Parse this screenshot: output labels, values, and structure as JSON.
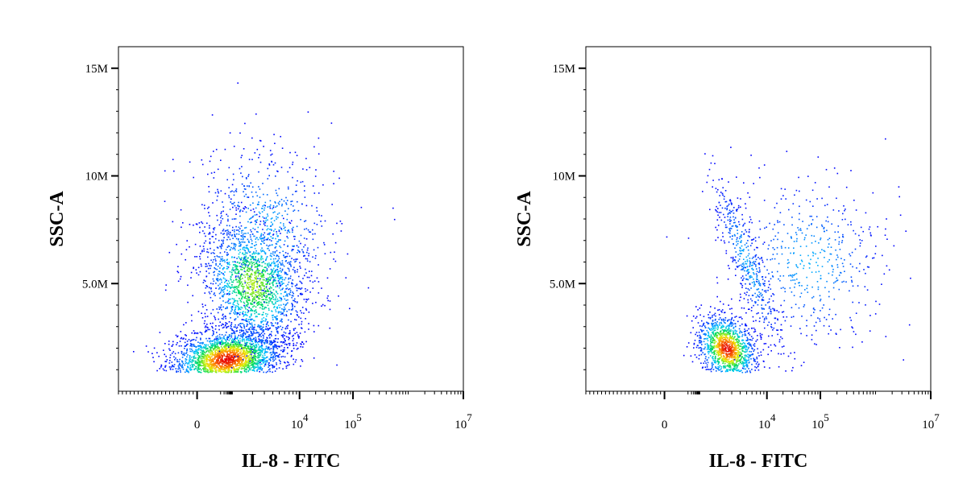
{
  "chart_data": [
    {
      "type": "scatter",
      "subtype": "flow-cytometry density plot",
      "xlabel": "IL-8 - FITC",
      "ylabel": "SSC-A",
      "x_scale": "biexponential",
      "x_ticks": [
        {
          "value": 0,
          "label": "0",
          "sup": ""
        },
        {
          "value": 10000,
          "label": "10",
          "sup": "4"
        },
        {
          "value": 100000,
          "label": "10",
          "sup": "5"
        },
        {
          "value": 10000000,
          "label": "10",
          "sup": "7"
        }
      ],
      "y_ticks": [
        {
          "value": 5000000,
          "label": "5.0M"
        },
        {
          "value": 10000000,
          "label": "10M"
        },
        {
          "value": 15000000,
          "label": "15M"
        }
      ],
      "ylim": [
        0,
        16000000
      ],
      "populations": [
        {
          "x_center": 300,
          "y_center": 1500000,
          "count": 2600,
          "density": "high"
        },
        {
          "x_center": 2000,
          "y_center": 5000000,
          "count": 1700,
          "density": "medium"
        },
        {
          "x_center": 3000,
          "y_center": 7500000,
          "count": 700,
          "density": "low"
        }
      ]
    },
    {
      "type": "scatter",
      "subtype": "flow-cytometry density plot",
      "xlabel": "IL-8 - FITC",
      "ylabel": "SSC-A",
      "x_scale": "biexponential",
      "x_ticks": [
        {
          "value": 0,
          "label": "0",
          "sup": ""
        },
        {
          "value": 10000,
          "label": "10",
          "sup": "4"
        },
        {
          "value": 100000,
          "label": "10",
          "sup": "5"
        },
        {
          "value": 10000000,
          "label": "10",
          "sup": "7"
        }
      ],
      "y_ticks": [
        {
          "value": 5000000,
          "label": "5.0M"
        },
        {
          "value": 10000000,
          "label": "10M"
        },
        {
          "value": 15000000,
          "label": "15M"
        }
      ],
      "ylim": [
        0,
        16000000
      ],
      "populations": [
        {
          "x_center": 2500,
          "y_center": 2000000,
          "count": 1300,
          "density": "high"
        },
        {
          "x_center": 5000,
          "y_center": 6000000,
          "count": 450,
          "density": "low"
        },
        {
          "x_center": 60000,
          "y_center": 6000000,
          "count": 500,
          "density": "low"
        }
      ]
    }
  ]
}
